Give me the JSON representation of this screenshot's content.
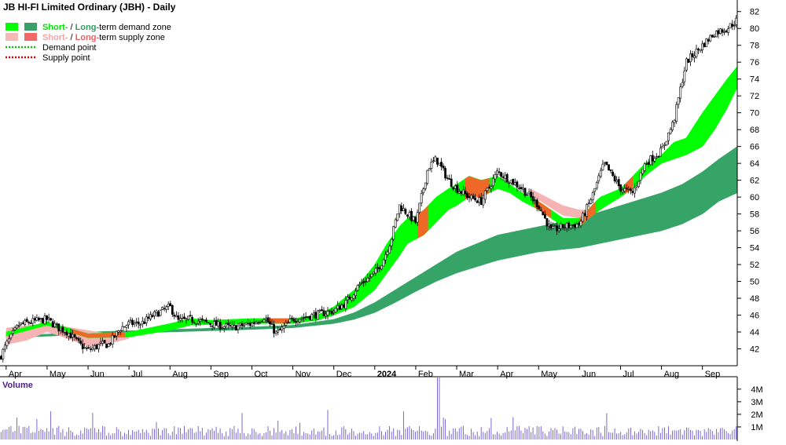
{
  "chart_data": {
    "type": "candlestick",
    "title": "JB HI-FI Limited Ordinary (JBH) - Daily",
    "legend": {
      "placement": "top-left",
      "entries": [
        {
          "prefix": "Short-",
          "sep": " / ",
          "long": "Long-",
          "suffix": "term demand zone",
          "short_color": "#00e600",
          "long_color": "#2e9e60",
          "swatch_short": "#00ff00",
          "swatch_long": "#3aa06a"
        },
        {
          "prefix": "Short-",
          "sep": " / ",
          "long": "Long-",
          "suffix": "term supply zone",
          "short_color": "#f4a3a3",
          "long_color": "#f06060",
          "swatch_short": "#f9b8b8",
          "swatch_long": "#f06868"
        },
        {
          "label": "Demand point",
          "color": "#00cc00",
          "style": "dotted"
        },
        {
          "label": "Supply point",
          "color": "#e00000",
          "style": "dotted"
        }
      ]
    },
    "x_axis": {
      "labels": [
        "Apr",
        "May",
        "Jun",
        "Jul",
        "Aug",
        "Sep",
        "Oct",
        "Nov",
        "Dec",
        "2024",
        "Feb",
        "Mar",
        "Apr",
        "May",
        "Jun",
        "Jul",
        "Aug",
        "Sep"
      ],
      "label_month_index": [
        0,
        1,
        2,
        3,
        4,
        5,
        6,
        7,
        8,
        9,
        10,
        11,
        12,
        13,
        14,
        15,
        16,
        17
      ],
      "start_month_index": -0.15,
      "end_month_index": 17.85
    },
    "y_axis": {
      "ylim": [
        40,
        83
      ],
      "ticks": [
        42,
        44,
        46,
        48,
        50,
        52,
        54,
        56,
        58,
        60,
        62,
        64,
        66,
        68,
        70,
        72,
        74,
        76,
        78,
        80,
        82
      ],
      "side": "right",
      "grid": false
    },
    "price_path": {
      "months": [
        -0.15,
        0.0,
        0.3,
        0.6,
        1.0,
        1.3,
        1.5,
        1.8,
        2.0,
        2.3,
        2.5,
        2.8,
        3.0,
        3.3,
        3.6,
        4.0,
        4.2,
        4.5,
        5.0,
        5.5,
        6.0,
        6.3,
        6.6,
        7.0,
        7.5,
        8.0,
        8.3,
        8.6,
        9.0,
        9.2,
        9.4,
        9.6,
        9.8,
        10.0,
        10.3,
        10.5,
        10.8,
        11.0,
        11.3,
        11.6,
        12.0,
        12.3,
        12.6,
        13.0,
        13.3,
        13.6,
        14.0,
        14.3,
        14.6,
        15.0,
        15.3,
        15.6,
        16.0,
        16.3,
        16.6,
        17.0,
        17.3,
        17.6,
        17.85
      ],
      "close": [
        41.0,
        42.5,
        44.8,
        45.2,
        45.5,
        44.4,
        44.0,
        42.5,
        41.8,
        42.5,
        42.5,
        44.5,
        45.0,
        45.0,
        46.0,
        47.0,
        45.3,
        45.5,
        45.0,
        44.5,
        45.0,
        45.8,
        43.8,
        45.5,
        46.0,
        46.5,
        47.5,
        49.5,
        51.0,
        52.5,
        55.0,
        59.0,
        58.0,
        57.0,
        63.5,
        64.5,
        62.0,
        61.0,
        60.0,
        59.5,
        63.0,
        62.0,
        61.0,
        59.0,
        56.0,
        56.5,
        56.8,
        60.0,
        64.0,
        61.0,
        60.5,
        64.0,
        65.5,
        69.0,
        76.0,
        78.0,
        79.5,
        80.0,
        81.0
      ]
    },
    "short_demand_zone": {
      "months": [
        0,
        1,
        2,
        3,
        4,
        4.5,
        5,
        6,
        7,
        7.6,
        8,
        8.5,
        9,
        9.3,
        9.6,
        9.8,
        10,
        10.2,
        10.5,
        10.8,
        11.0,
        11.3,
        11.6,
        12,
        12.3,
        12.6,
        13.0,
        13.3,
        13.6,
        14,
        14.5,
        15,
        15.3,
        15.6,
        16,
        16.3,
        16.6,
        17,
        17.3,
        17.6,
        17.85
      ],
      "upper": [
        44.0,
        45.2,
        43.8,
        44.0,
        45.0,
        45.6,
        45.4,
        45.6,
        45.6,
        46.0,
        47.0,
        49.0,
        52.0,
        54.5,
        56.5,
        57.5,
        57.8,
        58.5,
        60.0,
        61.0,
        61.5,
        62.5,
        62.0,
        62.5,
        61.5,
        60.5,
        59.5,
        58.5,
        57.5,
        57.5,
        60.0,
        61.0,
        62.5,
        64.0,
        65.0,
        66.5,
        67.0,
        70.0,
        72.0,
        74.0,
        75.5
      ],
      "lower": [
        43.5,
        44.8,
        43.3,
        43.4,
        44.2,
        44.8,
        44.9,
        45.0,
        45.0,
        45.4,
        46.0,
        47.0,
        49.0,
        51.0,
        53.0,
        54.5,
        55.0,
        55.5,
        57.0,
        58.5,
        59.0,
        60.0,
        60.0,
        61.0,
        60.5,
        59.5,
        58.5,
        57.5,
        56.5,
        56.5,
        58.5,
        60.0,
        61.0,
        62.5,
        64.0,
        64.5,
        65.0,
        66.0,
        68.0,
        70.5,
        73.0
      ],
      "color": "#00ff00",
      "supply_color": "#f06828",
      "supply_segments": [
        [
          1.6,
          2.9
        ],
        [
          6.4,
          6.9
        ],
        [
          10.05,
          10.3
        ],
        [
          11.2,
          11.8
        ],
        [
          12.9,
          13.3
        ],
        [
          14.0,
          14.4
        ],
        [
          15.1,
          15.3
        ]
      ]
    },
    "long_demand_zone": {
      "months": [
        0,
        2,
        4,
        6,
        7,
        8,
        8.5,
        9,
        9.5,
        10,
        10.5,
        11,
        12,
        13,
        14,
        15,
        16,
        16.5,
        17,
        17.4,
        17.85
      ],
      "upper": [
        43.5,
        44.0,
        44.3,
        44.6,
        44.8,
        45.5,
        46.3,
        47.5,
        49.0,
        50.5,
        52.0,
        53.5,
        55.5,
        56.5,
        57.5,
        59.0,
        60.5,
        61.5,
        63.0,
        64.5,
        66.0
      ],
      "lower": [
        43.3,
        43.7,
        44.0,
        44.3,
        44.5,
        45.0,
        45.5,
        46.3,
        47.5,
        48.8,
        50.0,
        51.0,
        52.5,
        53.5,
        54.0,
        55.0,
        56.0,
        56.8,
        58.0,
        59.5,
        60.5
      ],
      "color": "#36a467"
    },
    "short_supply_zone": {
      "months": [
        0,
        0.5,
        1.0,
        1.5,
        2.0,
        2.5,
        3.0
      ],
      "upper": [
        44.5,
        44.8,
        45.0,
        44.6,
        44.2,
        43.8,
        43.9
      ],
      "lower": [
        42.5,
        43.0,
        44.0,
        43.2,
        42.3,
        42.6,
        43.2
      ],
      "color": "#f6b3b3",
      "extra_segments": [
        {
          "months": [
            12.8,
            13.2,
            13.6,
            14.0,
            14.3
          ],
          "upper": [
            61.0,
            60.0,
            59.0,
            58.5,
            58.5
          ],
          "lower": [
            60.3,
            59.0,
            57.8,
            57.5,
            58.0
          ]
        }
      ]
    },
    "volume": {
      "label": "Volume",
      "label_color": "#4b1e8a",
      "ylim": [
        0,
        4.8
      ],
      "ticks": [
        1,
        2,
        3,
        4
      ],
      "tick_labels": [
        "1M",
        "2M",
        "3M",
        "4M"
      ],
      "typical": 0.9,
      "spike": {
        "month": 10.55,
        "value": 5.0
      },
      "color": "#6a5acd"
    }
  }
}
